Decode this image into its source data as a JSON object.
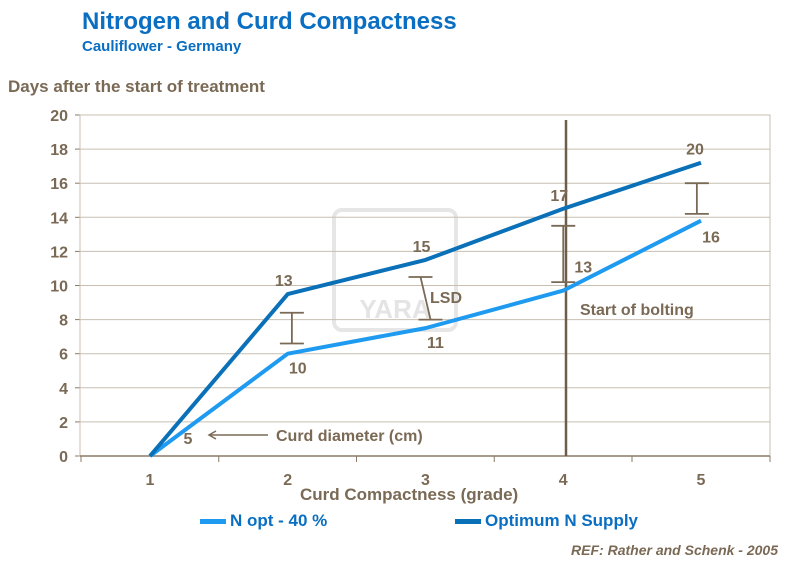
{
  "chart_data": {
    "type": "line",
    "title": "Nitrogen and Curd Compactness",
    "subtitle": "Cauliflower  - Germany",
    "xlabel": "Curd Compactness (grade)",
    "ylabel": "Days after the start of treatment",
    "x": [
      1,
      2,
      3,
      4,
      5
    ],
    "xticks": [
      "1",
      "2",
      "3",
      "4",
      "5"
    ],
    "ylim": [
      0,
      20
    ],
    "yticks": [
      "0",
      "2",
      "4",
      "6",
      "8",
      "10",
      "12",
      "14",
      "16",
      "18",
      "20"
    ],
    "grid": true,
    "legend": "bottom",
    "series": [
      {
        "name": "N opt - 40 %",
        "color": "#1e9bf0",
        "values": [
          0,
          6,
          7.5,
          9.7,
          13.8
        ],
        "point_labels": [
          "5",
          "10",
          "11",
          "13",
          "16"
        ]
      },
      {
        "name": "Optimum N Supply",
        "color": "#0a70b8",
        "values": [
          0,
          9.5,
          11.5,
          14.5,
          17.2
        ],
        "point_labels": [
          "",
          "13",
          "15",
          "17",
          "20"
        ]
      }
    ],
    "lsd_bars": [
      {
        "x": 2.03,
        "low": 6.6,
        "high": 8.4
      },
      {
        "x": 3.0,
        "low": 8.0,
        "high": 10.5
      },
      {
        "x": 4.0,
        "low": 10.2,
        "high": 13.5
      },
      {
        "x": 4.97,
        "low": 14.2,
        "high": 16.0
      }
    ],
    "annotations": {
      "lsd": "LSD",
      "bolting": "Start of bolting",
      "bolting_x": 4.02,
      "curd_diameter": "Curd diameter (cm)"
    },
    "reference": "REF: Rather and Schenk - 2005",
    "watermark": "YARA"
  }
}
